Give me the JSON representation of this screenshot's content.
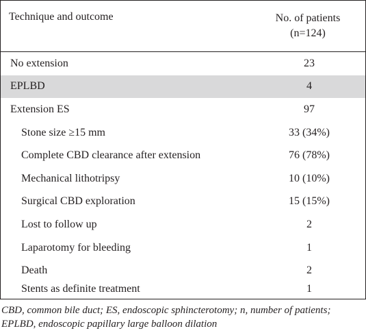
{
  "table": {
    "header": {
      "col1": "Technique and outcome",
      "col2_line1": "No. of patients",
      "col2_line2": "(n=124)"
    },
    "rows": [
      {
        "label": "No extension",
        "value": "23"
      },
      {
        "label": "EPLBD",
        "value": "4"
      },
      {
        "label": "Extension ES",
        "value": "97"
      },
      {
        "label": "Stone size ≥15 mm",
        "value": "33 (34%)"
      },
      {
        "label": "Complete CBD clearance after extension",
        "value": "76 (78%)"
      },
      {
        "label": "Mechanical lithotripsy",
        "value": "10 (10%)"
      },
      {
        "label": "Surgical CBD exploration",
        "value": "15 (15%)"
      },
      {
        "label": "Lost to follow up",
        "value": "2"
      },
      {
        "label": "Laparotomy for bleeding",
        "value": "1"
      },
      {
        "label": "Death",
        "value": "2"
      },
      {
        "label": "Stents as definite treatment",
        "value": "1"
      }
    ]
  },
  "footnote": "CBD, common bile duct; ES, endoscopic sphincterotomy; n, number of patients; EPLBD, endoscopic papillary large balloon dilation",
  "colors": {
    "border": "#231f20",
    "shaded_row": "#d9d9da",
    "text": "#231f20"
  }
}
